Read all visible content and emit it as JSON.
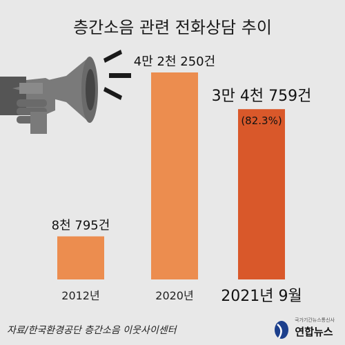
{
  "title": "층간소음 관련 전화상담 추이",
  "source": "자료/한국환경공단 층간소음 이웃사이센터",
  "logo": {
    "tagline": "국가기간뉴스통신사",
    "name": "연합뉴스",
    "icon": "yonhap-logo-icon"
  },
  "colors": {
    "background": "#e8e8e8",
    "bar": "#ec8d4f",
    "bar_highlight": "#d9582a",
    "megaphone": "#7a7a7a"
  },
  "chart_data": {
    "type": "bar",
    "title": "층간소음 관련 전화상담 추이",
    "categories": [
      "2012년",
      "2020년",
      "2021년 9월"
    ],
    "values": [
      8795,
      42250,
      34759
    ],
    "value_labels": [
      "8천 795건",
      "4만 2천 250건",
      "3만 4천 759건"
    ],
    "annotations": [
      "",
      "",
      "(82.3%)"
    ],
    "highlight_index": 2,
    "xlabel": "",
    "ylabel": "",
    "ylim": [
      0,
      42250
    ],
    "grid": false,
    "legend": "none"
  }
}
